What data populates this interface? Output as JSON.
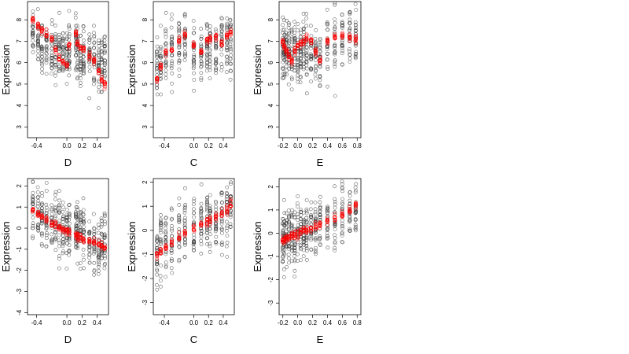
{
  "chart_data": [
    {
      "type": "scatter",
      "xlabel": "D",
      "ylabel": "Expression",
      "xlim": [
        -0.52,
        0.55
      ],
      "ylim": [
        2.5,
        8.85
      ],
      "xticks": [
        -0.4,
        0.0,
        0.2,
        0.4
      ],
      "xtick_labels": [
        "-0.4",
        "0.0",
        "0.2",
        "0.4"
      ],
      "yticks": [
        3,
        4,
        5,
        6,
        7,
        8
      ],
      "ytick_labels": [
        "3",
        "4",
        "5",
        "6",
        "7",
        "8"
      ],
      "x_groups": [
        -0.45,
        -0.38,
        -0.33,
        -0.27,
        -0.2,
        -0.15,
        -0.1,
        -0.05,
        0.0,
        0.03,
        0.12,
        0.14,
        0.18,
        0.22,
        0.3,
        0.36,
        0.42,
        0.46,
        0.5
      ],
      "observed_center": [
        7.5,
        7.2,
        6.8,
        6.6,
        6.3,
        6.5,
        6.7,
        6.4,
        6.4,
        6.5,
        7.0,
        6.8,
        6.2,
        6.4,
        6.5,
        6.4,
        6.0,
        5.8,
        6.1
      ],
      "fitted": [
        8.0,
        7.7,
        7.5,
        7.3,
        7.1,
        6.6,
        6.2,
        6.0,
        5.9,
        6.8,
        7.3,
        6.9,
        6.7,
        6.6,
        6.3,
        6.1,
        5.6,
        5.2,
        5.0
      ],
      "spread": 0.75,
      "grid": false
    },
    {
      "type": "scatter",
      "xlabel": "C",
      "ylabel": "Expression",
      "xlim": [
        -0.55,
        0.55
      ],
      "ylim": [
        2.5,
        8.85
      ],
      "xticks": [
        -0.4,
        0.0,
        0.2,
        0.4
      ],
      "xtick_labels": [
        "-0.4",
        "0.0",
        "0.2",
        "0.4"
      ],
      "yticks": [
        3,
        4,
        5,
        6,
        7,
        8
      ],
      "ytick_labels": [
        "3",
        "4",
        "5",
        "6",
        "7",
        "8"
      ],
      "x_groups": [
        -0.5,
        -0.45,
        -0.38,
        -0.3,
        -0.2,
        -0.12,
        0.0,
        0.1,
        0.18,
        0.22,
        0.3,
        0.38,
        0.45,
        0.5
      ],
      "observed_center": [
        5.8,
        6.0,
        6.4,
        6.3,
        6.6,
        6.8,
        6.2,
        6.5,
        6.6,
        6.8,
        6.6,
        6.8,
        6.9,
        7.0
      ],
      "fitted": [
        5.2,
        5.8,
        6.5,
        6.6,
        7.0,
        7.3,
        6.8,
        6.5,
        7.0,
        7.1,
        7.2,
        6.9,
        7.3,
        7.4
      ],
      "spread": 0.85,
      "grid": false
    },
    {
      "type": "scatter",
      "xlabel": "E",
      "ylabel": "Expression",
      "xlim": [
        -0.25,
        0.85
      ],
      "ylim": [
        2.5,
        8.85
      ],
      "xticks": [
        -0.2,
        0.0,
        0.2,
        0.4,
        0.6,
        0.8
      ],
      "xtick_labels": [
        "-0.2",
        "0.0",
        "0.2",
        "0.4",
        "0.6",
        "0.8"
      ],
      "yticks": [
        3,
        4,
        5,
        6,
        7,
        8
      ],
      "ytick_labels": [
        "3",
        "4",
        "5",
        "6",
        "7",
        "8"
      ],
      "x_groups": [
        -0.2,
        -0.18,
        -0.15,
        -0.12,
        -0.08,
        -0.04,
        0.0,
        0.04,
        0.08,
        0.12,
        0.18,
        0.24,
        0.3,
        0.4,
        0.5,
        0.6,
        0.7,
        0.78
      ],
      "observed_center": [
        6.8,
        6.6,
        6.5,
        6.6,
        6.4,
        6.5,
        6.3,
        6.4,
        6.5,
        6.6,
        6.5,
        6.4,
        6.3,
        6.8,
        7.0,
        7.1,
        7.2,
        7.1
      ],
      "fitted": [
        7.0,
        6.7,
        6.5,
        6.3,
        6.1,
        6.6,
        6.8,
        6.9,
        7.0,
        7.1,
        7.0,
        6.5,
        6.1,
        7.0,
        7.2,
        7.3,
        7.2,
        7.1
      ],
      "spread": 0.8,
      "grid": false
    },
    {
      "type": "scatter",
      "xlabel": "D",
      "ylabel": "Expression",
      "xlim": [
        -0.52,
        0.55
      ],
      "ylim": [
        -4.1,
        2.35
      ],
      "xticks": [
        -0.4,
        0.0,
        0.2,
        0.4
      ],
      "xtick_labels": [
        "-0.4",
        "0.0",
        "0.2",
        "0.4"
      ],
      "yticks": [
        -4,
        -3,
        -2,
        -1,
        0,
        1,
        2
      ],
      "ytick_labels": [
        "-4",
        "-3",
        "-2",
        "-1",
        "0",
        "1",
        "2"
      ],
      "x_groups": [
        -0.45,
        -0.38,
        -0.33,
        -0.27,
        -0.2,
        -0.15,
        -0.1,
        -0.05,
        0.0,
        0.03,
        0.12,
        0.14,
        0.18,
        0.22,
        0.3,
        0.36,
        0.42,
        0.46,
        0.5
      ],
      "observed_center": [
        1.2,
        0.9,
        0.6,
        0.5,
        0.3,
        0.4,
        0.1,
        -0.1,
        0.0,
        -0.1,
        0.0,
        -0.2,
        -0.3,
        -0.4,
        -0.5,
        -0.8,
        -1.1,
        -0.6,
        -0.7
      ],
      "fitted": [
        0.85,
        0.7,
        0.55,
        0.4,
        0.25,
        0.15,
        0.05,
        -0.05,
        -0.15,
        -0.2,
        -0.35,
        -0.4,
        -0.45,
        -0.55,
        -0.6,
        -0.7,
        -0.8,
        -0.85,
        -0.9
      ],
      "spread": 0.75,
      "grid": false
    },
    {
      "type": "scatter",
      "xlabel": "C",
      "ylabel": "Expression",
      "xlim": [
        -0.55,
        0.55
      ],
      "ylim": [
        -3.5,
        2.15
      ],
      "xticks": [
        -0.4,
        0.0,
        0.2,
        0.4
      ],
      "xtick_labels": [
        "-0.4",
        "0.0",
        "0.2",
        "0.4"
      ],
      "yticks": [
        -3,
        -2,
        -1,
        0,
        1,
        2
      ],
      "ytick_labels": [
        "-3",
        "-2",
        "-1",
        "0",
        "1",
        "2"
      ],
      "x_groups": [
        -0.5,
        -0.45,
        -0.38,
        -0.3,
        -0.2,
        -0.12,
        0.0,
        0.1,
        0.18,
        0.22,
        0.3,
        0.38,
        0.45,
        0.5
      ],
      "observed_center": [
        -0.9,
        -0.6,
        -0.5,
        -0.3,
        -0.1,
        0.0,
        0.1,
        0.2,
        0.3,
        0.4,
        0.5,
        0.6,
        0.7,
        0.8
      ],
      "fitted": [
        -1.0,
        -0.85,
        -0.7,
        -0.5,
        -0.3,
        -0.1,
        0.05,
        0.25,
        0.35,
        0.45,
        0.55,
        0.7,
        0.85,
        1.0
      ],
      "spread": 0.8,
      "grid": false
    },
    {
      "type": "scatter",
      "xlabel": "E",
      "ylabel": "Expression",
      "xlim": [
        -0.25,
        0.85
      ],
      "ylim": [
        -3.5,
        2.35
      ],
      "xticks": [
        -0.2,
        0.0,
        0.2,
        0.4,
        0.6,
        0.8
      ],
      "xtick_labels": [
        "-0.2",
        "0.0",
        "0.2",
        "0.4",
        "0.6",
        "0.8"
      ],
      "yticks": [
        -3,
        -2,
        -1,
        0,
        1,
        2
      ],
      "ytick_labels": [
        "-3",
        "-2",
        "-1",
        "0",
        "1",
        "2"
      ],
      "x_groups": [
        -0.2,
        -0.18,
        -0.15,
        -0.12,
        -0.08,
        -0.04,
        0.0,
        0.04,
        0.08,
        0.12,
        0.18,
        0.24,
        0.3,
        0.4,
        0.5,
        0.6,
        0.7,
        0.78
      ],
      "observed_center": [
        -0.4,
        -0.3,
        -0.2,
        -0.1,
        0.0,
        -0.1,
        0.1,
        0.0,
        0.1,
        0.2,
        0.3,
        0.3,
        0.4,
        0.5,
        0.6,
        0.8,
        1.0,
        1.1
      ],
      "fitted": [
        -0.3,
        -0.28,
        -0.22,
        -0.18,
        -0.12,
        -0.08,
        -0.02,
        0.05,
        0.1,
        0.15,
        0.22,
        0.3,
        0.38,
        0.5,
        0.65,
        0.8,
        1.0,
        1.2
      ],
      "spread": 0.7,
      "grid": false
    }
  ],
  "colors": {
    "observed": "#3a3a3a",
    "fitted": "#ff0000",
    "frame": "#000000"
  }
}
